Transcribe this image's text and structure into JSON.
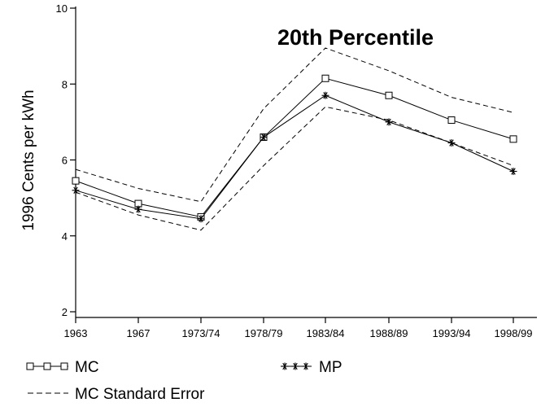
{
  "chart_data": {
    "type": "line",
    "title": "20th Percentile",
    "xlabel": "",
    "ylabel": "1996 Cents per kWh",
    "categories": [
      "1963",
      "1967",
      "1973/74",
      "1978/79",
      "1983/84",
      "1988/89",
      "1993/94",
      "1998/99"
    ],
    "ylim": [
      2,
      10
    ],
    "yticks": [
      2,
      4,
      6,
      8,
      10
    ],
    "grid": false,
    "legend_position": "bottom",
    "series": [
      {
        "name": "MC",
        "style": "solid",
        "marker": "square",
        "values": [
          5.45,
          4.85,
          4.5,
          6.6,
          8.15,
          7.7,
          7.05,
          6.55
        ]
      },
      {
        "name": "MP",
        "style": "solid",
        "marker": "asterisk",
        "values": [
          5.2,
          4.7,
          4.45,
          6.6,
          7.7,
          7.0,
          6.45,
          5.7
        ]
      },
      {
        "name": "MC Standard Error",
        "style": "dashed",
        "marker": "none",
        "values": [
          5.75,
          5.25,
          4.9,
          7.35,
          8.95,
          8.35,
          7.65,
          7.25
        ]
      },
      {
        "name": "",
        "style": "dashed",
        "marker": "none",
        "values": [
          5.15,
          4.55,
          4.15,
          5.85,
          7.4,
          7.05,
          6.45,
          5.85
        ]
      }
    ]
  },
  "legend": {
    "mc": "MC",
    "mp": "MP",
    "se": "MC Standard Error"
  }
}
